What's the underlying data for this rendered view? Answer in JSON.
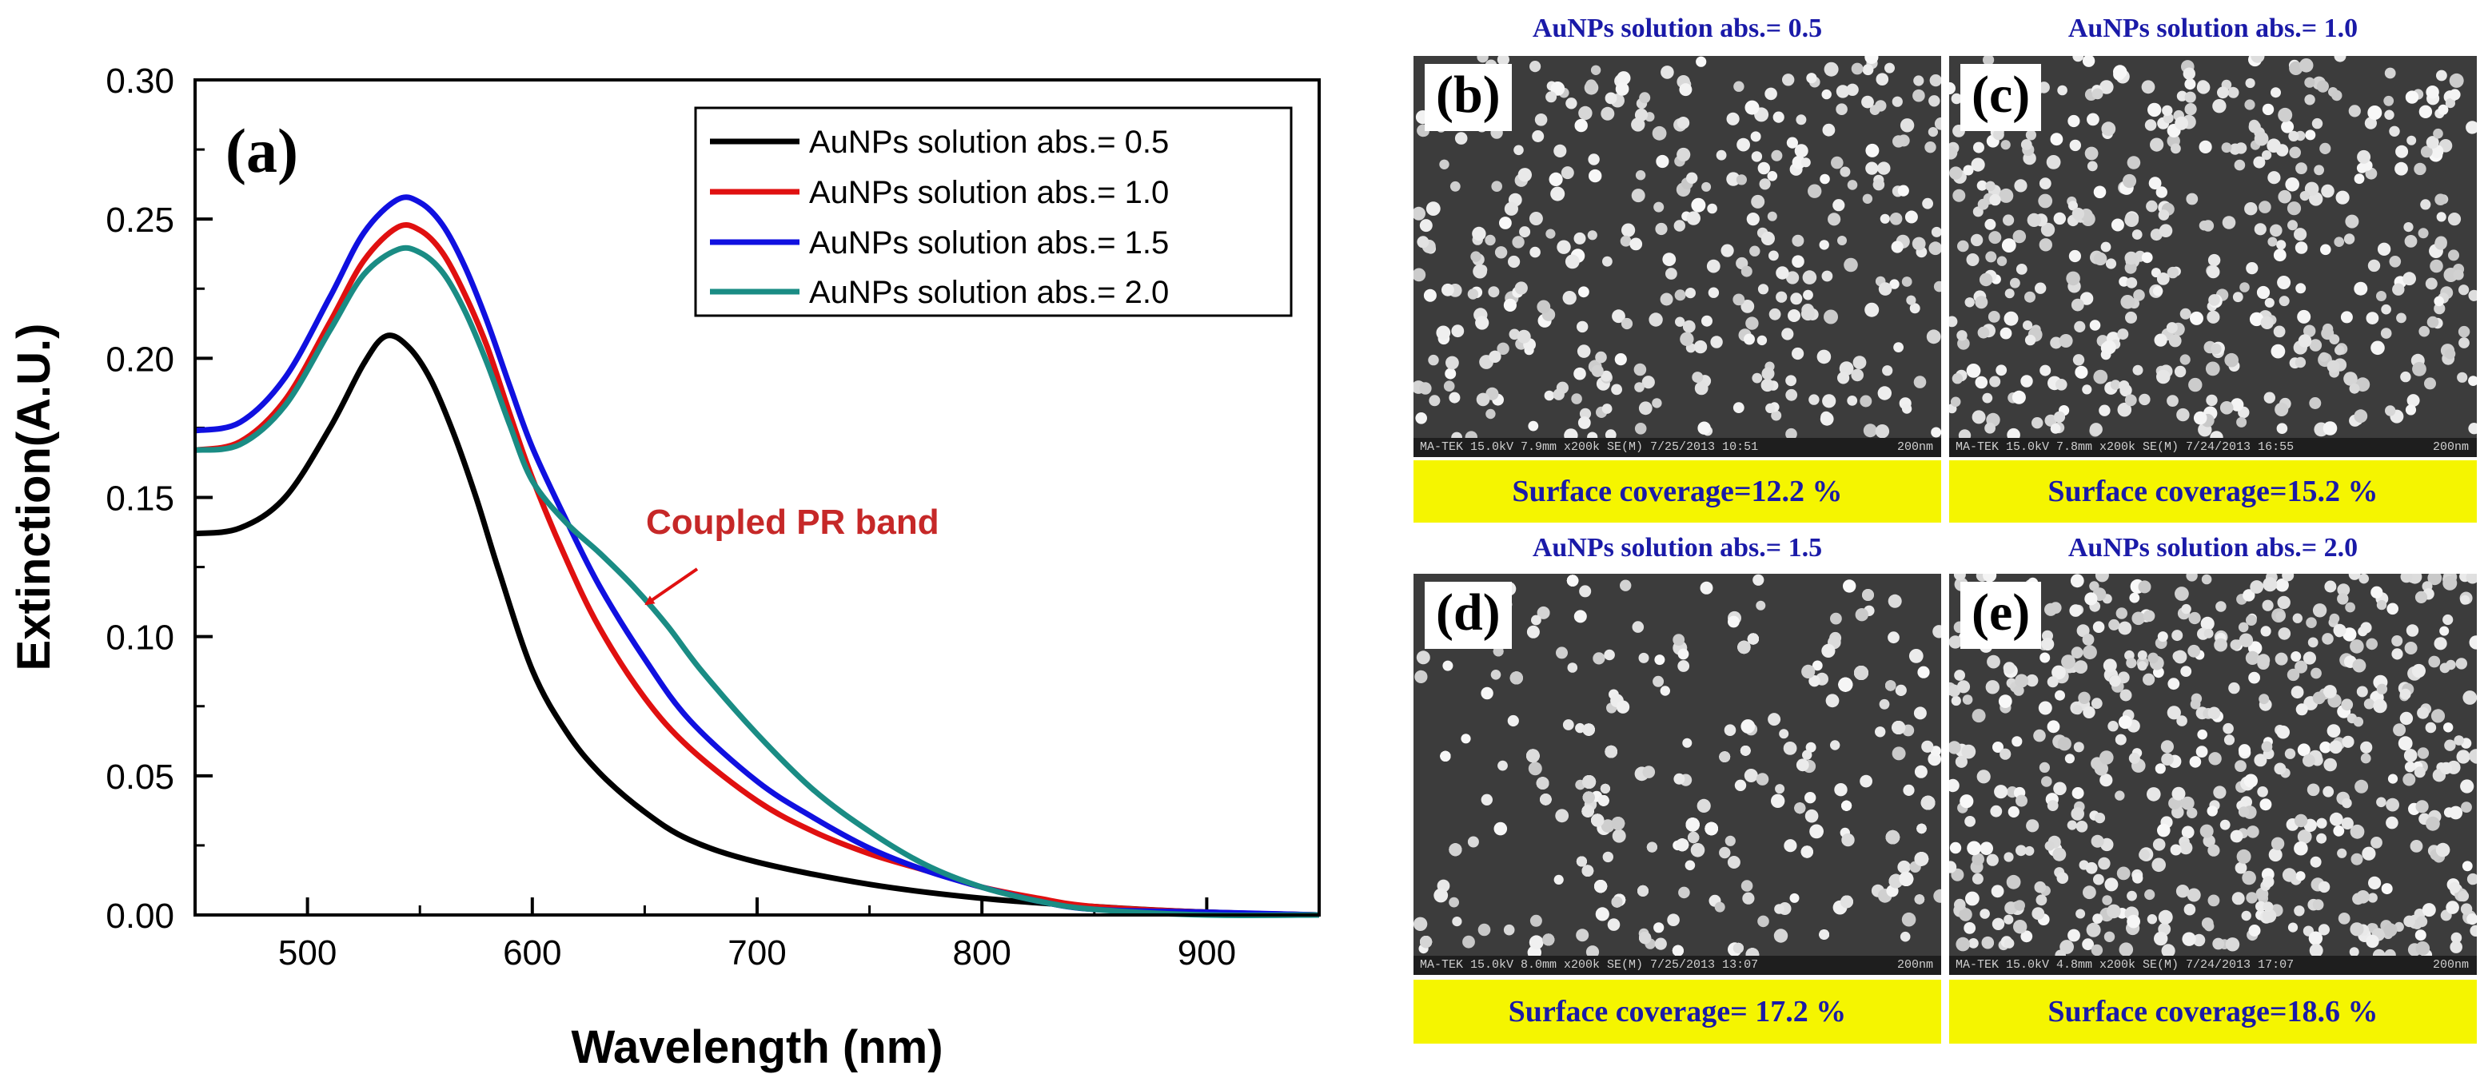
{
  "chart_data": {
    "type": "line",
    "panel_label": "(a)",
    "xlabel": "Wavelength (nm)",
    "ylabel": "Extinction(A.U.)",
    "xlim": [
      450,
      950
    ],
    "ylim": [
      0,
      0.3
    ],
    "x_ticks": [
      500,
      600,
      700,
      800,
      900
    ],
    "x_tick_labels": [
      "500",
      "600",
      "700",
      "800",
      "900"
    ],
    "y_ticks": [
      0,
      0.05,
      0.1,
      0.15,
      0.2,
      0.25,
      0.3
    ],
    "y_tick_labels": [
      "0.00",
      "0.05",
      "0.10",
      "0.15",
      "0.20",
      "0.25",
      "0.30"
    ],
    "legend_position": "top-right",
    "series": [
      {
        "name": "AuNPs solution abs.= 0.5",
        "color": "#000000",
        "points": [
          [
            450,
            0.137
          ],
          [
            470,
            0.139
          ],
          [
            490,
            0.15
          ],
          [
            510,
            0.175
          ],
          [
            525,
            0.198
          ],
          [
            535,
            0.208
          ],
          [
            545,
            0.204
          ],
          [
            555,
            0.192
          ],
          [
            565,
            0.173
          ],
          [
            575,
            0.15
          ],
          [
            585,
            0.124
          ],
          [
            600,
            0.088
          ],
          [
            615,
            0.066
          ],
          [
            630,
            0.051
          ],
          [
            650,
            0.037
          ],
          [
            670,
            0.027
          ],
          [
            700,
            0.019
          ],
          [
            750,
            0.011
          ],
          [
            800,
            0.006
          ],
          [
            850,
            0.003
          ],
          [
            900,
            0.001
          ],
          [
            950,
            0.0
          ]
        ]
      },
      {
        "name": "AuNPs solution abs.= 1.0",
        "color": "#e01010",
        "points": [
          [
            450,
            0.167
          ],
          [
            470,
            0.17
          ],
          [
            490,
            0.185
          ],
          [
            510,
            0.213
          ],
          [
            525,
            0.235
          ],
          [
            540,
            0.247
          ],
          [
            550,
            0.246
          ],
          [
            560,
            0.238
          ],
          [
            570,
            0.223
          ],
          [
            580,
            0.204
          ],
          [
            590,
            0.18
          ],
          [
            600,
            0.157
          ],
          [
            615,
            0.128
          ],
          [
            630,
            0.103
          ],
          [
            650,
            0.078
          ],
          [
            670,
            0.06
          ],
          [
            700,
            0.041
          ],
          [
            725,
            0.03
          ],
          [
            750,
            0.022
          ],
          [
            775,
            0.016
          ],
          [
            800,
            0.01
          ],
          [
            825,
            0.006
          ],
          [
            850,
            0.003
          ],
          [
            900,
            0.001
          ],
          [
            950,
            0.0
          ]
        ]
      },
      {
        "name": "AuNPs solution abs.= 1.5",
        "color": "#1010e0",
        "points": [
          [
            450,
            0.174
          ],
          [
            470,
            0.177
          ],
          [
            490,
            0.193
          ],
          [
            510,
            0.222
          ],
          [
            525,
            0.245
          ],
          [
            540,
            0.257
          ],
          [
            550,
            0.256
          ],
          [
            560,
            0.248
          ],
          [
            570,
            0.233
          ],
          [
            580,
            0.213
          ],
          [
            590,
            0.19
          ],
          [
            600,
            0.168
          ],
          [
            615,
            0.142
          ],
          [
            630,
            0.118
          ],
          [
            650,
            0.092
          ],
          [
            670,
            0.07
          ],
          [
            700,
            0.048
          ],
          [
            725,
            0.035
          ],
          [
            750,
            0.024
          ],
          [
            775,
            0.016
          ],
          [
            800,
            0.01
          ],
          [
            825,
            0.005
          ],
          [
            850,
            0.002
          ],
          [
            900,
            0.001
          ],
          [
            950,
            0.0
          ]
        ]
      },
      {
        "name": "AuNPs solution abs.= 2.0",
        "color": "#1a8c84",
        "points": [
          [
            450,
            0.167
          ],
          [
            470,
            0.169
          ],
          [
            490,
            0.183
          ],
          [
            510,
            0.21
          ],
          [
            525,
            0.23
          ],
          [
            540,
            0.239
          ],
          [
            550,
            0.238
          ],
          [
            560,
            0.231
          ],
          [
            570,
            0.217
          ],
          [
            580,
            0.198
          ],
          [
            590,
            0.176
          ],
          [
            600,
            0.156
          ],
          [
            615,
            0.141
          ],
          [
            630,
            0.13
          ],
          [
            645,
            0.118
          ],
          [
            660,
            0.104
          ],
          [
            675,
            0.088
          ],
          [
            700,
            0.065
          ],
          [
            725,
            0.045
          ],
          [
            750,
            0.03
          ],
          [
            775,
            0.018
          ],
          [
            800,
            0.01
          ],
          [
            825,
            0.005
          ],
          [
            850,
            0.002
          ],
          [
            900,
            0.0
          ],
          [
            950,
            0.0
          ]
        ]
      }
    ],
    "annotations": [
      {
        "text": "Coupled PR band",
        "color": "#c62828"
      }
    ]
  },
  "sem_panels": [
    {
      "title": "AuNPs solution abs.= 0.5",
      "label": "(b)",
      "coverage": "Surface coverage=12.2 %",
      "info": "MA-TEK 15.0kV 7.9mm x200k SE(M) 7/25/2013 10:51",
      "scale": "200nm"
    },
    {
      "title": "AuNPs solution abs.= 1.0",
      "label": "(c)",
      "coverage": "Surface coverage=15.2 %",
      "info": "MA-TEK 15.0kV 7.8mm x200k SE(M) 7/24/2013 16:55",
      "scale": "200nm"
    },
    {
      "title": "AuNPs solution abs.= 1.5",
      "label": "(d)",
      "coverage": "Surface coverage= 17.2 %",
      "info": "MA-TEK 15.0kV 8.0mm x200k SE(M) 7/25/2013 13:07",
      "scale": "200nm"
    },
    {
      "title": "AuNPs solution abs.= 2.0",
      "label": "(e)",
      "coverage": "Surface coverage=18.6 %",
      "info": "MA-TEK 15.0kV 4.8mm x200k SE(M) 7/24/2013 17:07",
      "scale": "200nm"
    }
  ]
}
